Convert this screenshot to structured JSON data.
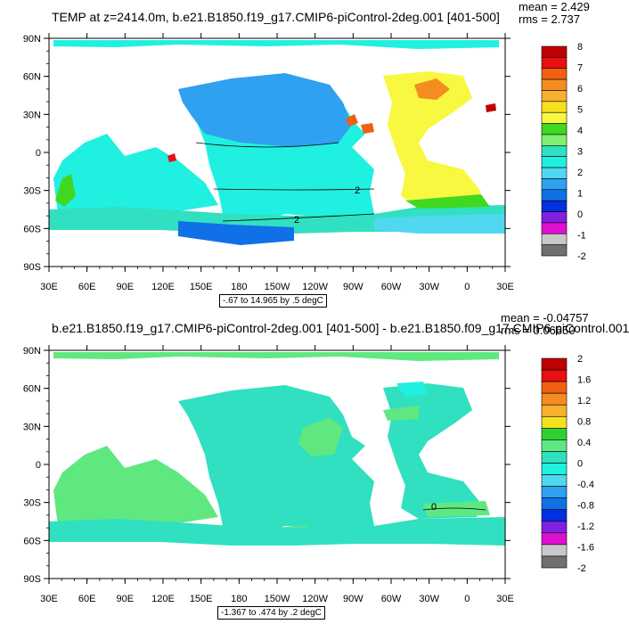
{
  "top": {
    "title": "TEMP at z=2414.0m, b.e21.B1850.f19_g17.CMIP6-piControl-2deg.001 [401-500]",
    "mean": "mean = 2.429",
    "rms": "rms = 2.737",
    "info": "-.67 to 14.965 by .5 degC",
    "colorbar": {
      "labels": [
        "8",
        "7",
        "6",
        "5",
        "4",
        "3",
        "2",
        "1",
        "0",
        "-1",
        "-2"
      ],
      "colors": [
        "#c00000",
        "#e81010",
        "#f06010",
        "#f48c20",
        "#f8b030",
        "#f8e020",
        "#f8f840",
        "#40d820",
        "#80f070",
        "#30e0c0",
        "#20f0e0",
        "#50d8f0",
        "#30a0f0",
        "#1070e8",
        "#0030e0",
        "#8020e0",
        "#e010d0",
        "#c8c8c8",
        "#707070"
      ]
    },
    "contours": [
      "2",
      "2"
    ]
  },
  "bottom": {
    "title": "b.e21.B1850.f19_g17.CMIP6-piControl-2deg.001 [401-500] - b.e21.B1850.f09_g17.CMIP6-piControl.001",
    "mean": "mean = -0.04757",
    "rms": "rms = 0.06650",
    "info": "-1.367 to .474 by .2 degC",
    "colorbar": {
      "labels": [
        "2",
        "1.6",
        "1.2",
        "0.8",
        "0.4",
        "0",
        "-0.4",
        "-0.8",
        "-1.2",
        "-1.6",
        "-2"
      ],
      "colors": [
        "#c00000",
        "#e81010",
        "#f06010",
        "#f48c20",
        "#f8b030",
        "#f8e020",
        "#30d030",
        "#60e880",
        "#30e0c0",
        "#20f0e0",
        "#50d8f0",
        "#30a0f0",
        "#1070e8",
        "#0030e0",
        "#8020e0",
        "#e010d0",
        "#c8c8c8",
        "#707070"
      ]
    },
    "contours": [
      "0"
    ]
  },
  "axes": {
    "lat_labels": [
      "90N",
      "60N",
      "30N",
      "0",
      "30S",
      "60S",
      "90S"
    ],
    "lon_labels": [
      "30E",
      "60E",
      "90E",
      "120E",
      "150E",
      "180",
      "150W",
      "120W",
      "90W",
      "60W",
      "30W",
      "0",
      "30E"
    ]
  }
}
